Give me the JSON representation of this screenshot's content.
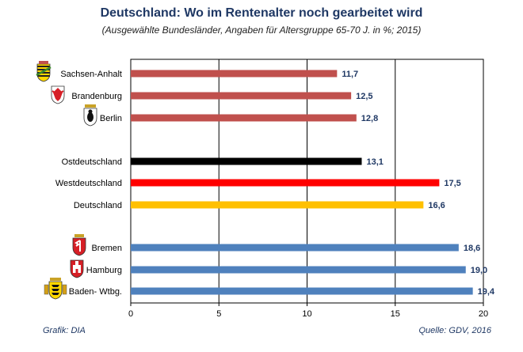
{
  "title": "Deutschland: Wo im Rentenalter noch gearbeitet wird",
  "subtitle": "(Ausgewählte Bundesländer, Angaben für Altersgruppe 65-70 J. in %; 2015)",
  "source_left": "Grafik: DIA",
  "source_right": "Quelle: GDV, 2016",
  "chart_data": {
    "type": "bar",
    "orientation": "horizontal",
    "categories": [
      "Sachsen-Anhalt",
      "Brandenburg",
      "Berlin",
      "Ostdeutschland",
      "Westdeutschland",
      "Deutschland",
      "Bremen",
      "Hamburg",
      "Baden- Wtbg."
    ],
    "values": [
      11.7,
      12.5,
      12.8,
      13.1,
      17.5,
      16.6,
      18.6,
      19.0,
      19.4
    ],
    "value_labels": [
      "11,7",
      "12,5",
      "12,8",
      "13,1",
      "17,5",
      "16,6",
      "18,6",
      "19,0",
      "19,4"
    ],
    "colors": [
      "#c0504d",
      "#c0504d",
      "#c0504d",
      "#000000",
      "#ff0000",
      "#ffc000",
      "#4f81bd",
      "#4f81bd",
      "#4f81bd"
    ],
    "xlim": [
      0,
      20
    ],
    "xticks": [
      0,
      5,
      10,
      15,
      20
    ],
    "grid": true,
    "icons": [
      "coat-of-arms-sachsen-anhalt",
      "coat-of-arms-brandenburg",
      "coat-of-arms-berlin",
      "",
      "",
      "",
      "coat-of-arms-bremen",
      "coat-of-arms-hamburg",
      "coat-of-arms-baden-wuerttemberg"
    ]
  }
}
